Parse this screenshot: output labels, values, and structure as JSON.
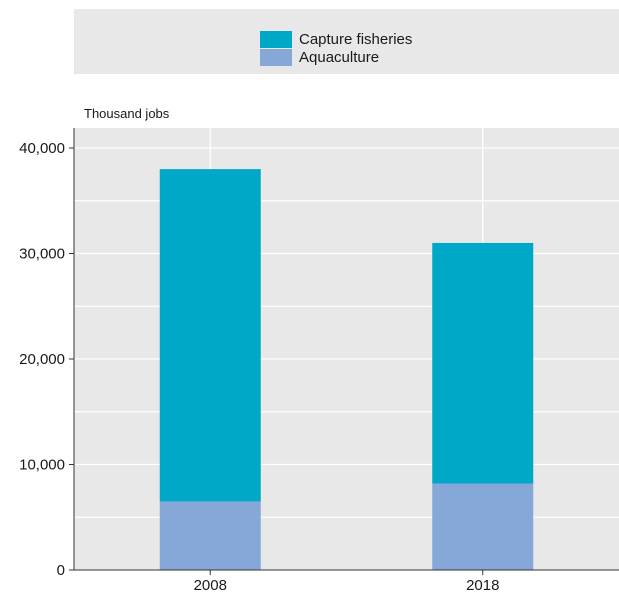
{
  "chart_data": {
    "type": "bar",
    "stacked": true,
    "categories": [
      "2008",
      "2018"
    ],
    "series": [
      {
        "name": "Aquaculture",
        "values": [
          6500,
          8200
        ],
        "color": "#85a8d8"
      },
      {
        "name": "Capture fisheries",
        "values": [
          31500,
          22800
        ],
        "color": "#00a8c8"
      }
    ],
    "legend_order": [
      "Capture fisheries",
      "Aquaculture"
    ],
    "ylabel": "Thousand jobs",
    "ylim": [
      0,
      40000
    ],
    "yticks": [
      0,
      10000,
      20000,
      30000,
      40000
    ],
    "ytick_labels": [
      "0",
      "10,000",
      "20,000",
      "30,000",
      "40,000"
    ],
    "grid": true,
    "legend_position": "top",
    "colors": {
      "plot_background": "#e8e8e8",
      "grid": "#ffffff"
    }
  }
}
